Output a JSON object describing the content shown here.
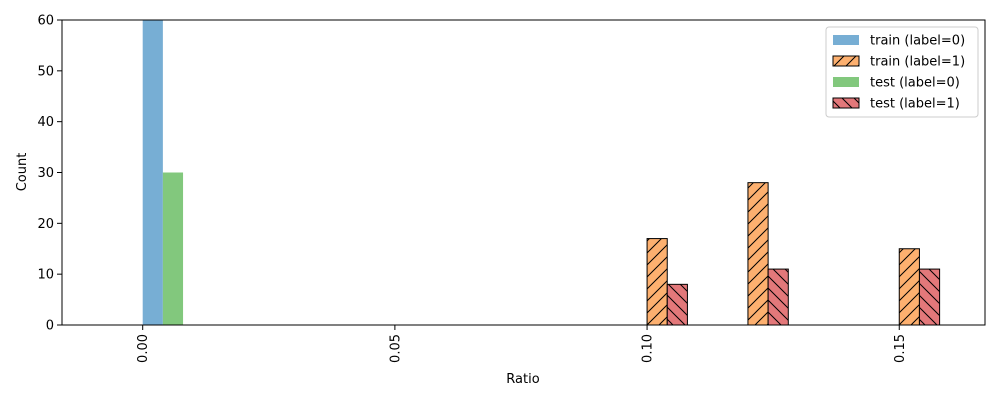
{
  "chart_data": {
    "type": "bar",
    "xlabel": "Ratio",
    "ylabel": "Count",
    "ylim": [
      0,
      60
    ],
    "xlim": [
      -0.016,
      0.167
    ],
    "bin_width": 0.004,
    "x_ticks": [
      "0.00",
      "0.05",
      "0.10",
      "0.15"
    ],
    "x_tick_values": [
      0.0,
      0.05,
      0.1,
      0.15
    ],
    "y_ticks": [
      "0",
      "10",
      "20",
      "30",
      "40",
      "50",
      "60"
    ],
    "y_tick_values": [
      0,
      10,
      20,
      30,
      40,
      50,
      60
    ],
    "legend_position": "top-right",
    "grid": false,
    "series": [
      {
        "name": "train (label=0)",
        "color": "#77aed4",
        "hatch": "none",
        "offset": 0,
        "bars": [
          {
            "x": 0.0,
            "value": 60
          }
        ]
      },
      {
        "name": "train (label=1)",
        "color": "#fdb06f",
        "hatch": "/",
        "offset": 0,
        "bars": [
          {
            "x": 0.1,
            "value": 17
          },
          {
            "x": 0.12,
            "value": 28
          },
          {
            "x": 0.15,
            "value": 15
          }
        ]
      },
      {
        "name": "test (label=0)",
        "color": "#82c87d",
        "hatch": "none",
        "offset": 1,
        "bars": [
          {
            "x": 0.0,
            "value": 30
          }
        ]
      },
      {
        "name": "test (label=1)",
        "color": "#e3787a",
        "hatch": "\\",
        "offset": 1,
        "bars": [
          {
            "x": 0.1,
            "value": 8
          },
          {
            "x": 0.12,
            "value": 11
          },
          {
            "x": 0.15,
            "value": 11
          }
        ]
      }
    ]
  }
}
